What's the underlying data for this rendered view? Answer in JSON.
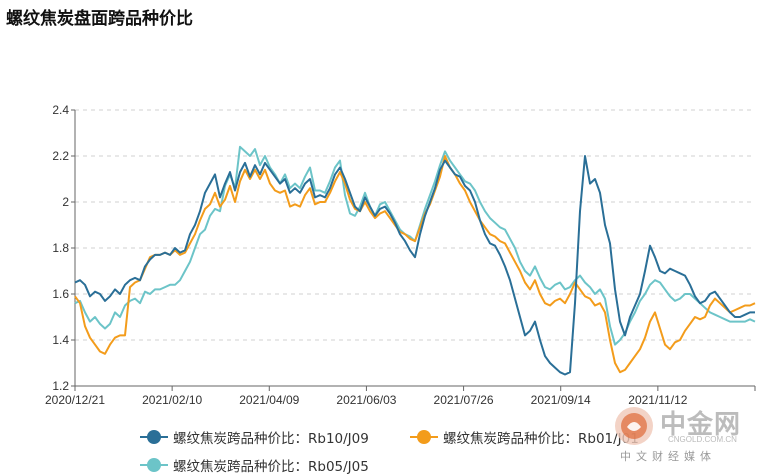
{
  "chart_data": {
    "type": "line",
    "title": "螺纹焦炭盘面跨品种价比",
    "x_tick_labels": [
      "2020/12/21",
      "2021/02/10",
      "2021/04/09",
      "2021/06/03",
      "2021/07/26",
      "2021/09/14",
      "2021/11/12"
    ],
    "y_ticks": [
      "1.2",
      "1.4",
      "1.6",
      "1.8",
      "2",
      "2.2",
      "2.4"
    ],
    "ylim": [
      1.2,
      2.4
    ],
    "grid": "horizontal dashed",
    "legend_position": "bottom",
    "series": [
      {
        "name": "螺纹焦炭跨品种价比：Rb10/J09",
        "color": "#2a6f97",
        "values": [
          1.65,
          1.66,
          1.64,
          1.59,
          1.61,
          1.6,
          1.57,
          1.59,
          1.62,
          1.6,
          1.64,
          1.66,
          1.67,
          1.66,
          1.72,
          1.75,
          1.77,
          1.77,
          1.78,
          1.77,
          1.8,
          1.78,
          1.79,
          1.86,
          1.9,
          1.96,
          2.04,
          2.08,
          2.12,
          2.02,
          2.08,
          2.13,
          2.05,
          2.13,
          2.17,
          2.11,
          2.16,
          2.12,
          2.17,
          2.14,
          2.11,
          2.08,
          2.1,
          2.04,
          2.06,
          2.04,
          2.08,
          2.1,
          2.02,
          2.03,
          2.02,
          2.06,
          2.12,
          2.15,
          2.1,
          2.04,
          1.98,
          1.96,
          2.02,
          1.98,
          1.94,
          1.97,
          1.98,
          1.95,
          1.91,
          1.86,
          1.83,
          1.79,
          1.76,
          1.86,
          1.94,
          2.0,
          2.06,
          2.14,
          2.18,
          2.15,
          2.12,
          2.11,
          2.07,
          2.05,
          2.0,
          1.92,
          1.86,
          1.82,
          1.81,
          1.77,
          1.72,
          1.66,
          1.58,
          1.5,
          1.42,
          1.44,
          1.48,
          1.4,
          1.33,
          1.3,
          1.28,
          1.26,
          1.25,
          1.26,
          1.56,
          1.96,
          2.2,
          2.08,
          2.1,
          2.04,
          1.9,
          1.82,
          1.62,
          1.48,
          1.42,
          1.5,
          1.55,
          1.6,
          1.7,
          1.81,
          1.76,
          1.7,
          1.69,
          1.71,
          1.7,
          1.69,
          1.68,
          1.64,
          1.59,
          1.56,
          1.57,
          1.6,
          1.61,
          1.58,
          1.55,
          1.52,
          1.5,
          1.5,
          1.51,
          1.52,
          1.52
        ]
      },
      {
        "name": "螺纹焦炭跨品种价比：Rb01/J01",
        "color": "#f39c1b",
        "values": [
          1.59,
          1.56,
          1.46,
          1.41,
          1.38,
          1.35,
          1.34,
          1.38,
          1.41,
          1.42,
          1.42,
          1.63,
          1.65,
          1.66,
          1.71,
          1.76,
          1.77,
          1.77,
          1.78,
          1.77,
          1.79,
          1.77,
          1.78,
          1.82,
          1.86,
          1.92,
          1.97,
          1.99,
          2.04,
          1.98,
          2.01,
          2.07,
          2.0,
          2.09,
          2.14,
          2.1,
          2.14,
          2.1,
          2.14,
          2.08,
          2.05,
          2.04,
          2.05,
          1.98,
          1.99,
          1.98,
          2.03,
          2.06,
          1.99,
          2.0,
          2.0,
          2.04,
          2.09,
          2.13,
          2.08,
          2.01,
          1.97,
          1.96,
          2.0,
          1.96,
          1.93,
          1.95,
          1.96,
          1.93,
          1.9,
          1.87,
          1.86,
          1.84,
          1.83,
          1.89,
          1.95,
          1.99,
          2.05,
          2.11,
          2.2,
          2.15,
          2.12,
          2.08,
          2.05,
          2.0,
          1.96,
          1.92,
          1.89,
          1.86,
          1.85,
          1.83,
          1.82,
          1.78,
          1.74,
          1.7,
          1.65,
          1.62,
          1.66,
          1.6,
          1.56,
          1.55,
          1.57,
          1.58,
          1.56,
          1.6,
          1.65,
          1.62,
          1.59,
          1.58,
          1.55,
          1.56,
          1.52,
          1.4,
          1.3,
          1.26,
          1.27,
          1.3,
          1.33,
          1.36,
          1.41,
          1.48,
          1.52,
          1.45,
          1.38,
          1.36,
          1.39,
          1.4,
          1.44,
          1.47,
          1.5,
          1.49,
          1.5,
          1.55,
          1.58,
          1.56,
          1.54,
          1.52,
          1.53,
          1.54,
          1.55,
          1.55,
          1.56
        ]
      },
      {
        "name": "螺纹焦炭跨品种价比：Rb05/J05",
        "color": "#6cc4c8",
        "values": [
          1.56,
          1.57,
          1.52,
          1.48,
          1.5,
          1.47,
          1.45,
          1.47,
          1.52,
          1.5,
          1.55,
          1.57,
          1.58,
          1.56,
          1.61,
          1.6,
          1.62,
          1.62,
          1.63,
          1.64,
          1.64,
          1.66,
          1.7,
          1.74,
          1.8,
          1.86,
          1.88,
          1.94,
          1.97,
          1.96,
          2.07,
          2.12,
          2.06,
          2.24,
          2.22,
          2.2,
          2.23,
          2.16,
          2.2,
          2.15,
          2.12,
          2.08,
          2.12,
          2.06,
          2.08,
          2.06,
          2.11,
          2.15,
          2.05,
          2.05,
          2.04,
          2.09,
          2.15,
          2.18,
          2.03,
          1.95,
          1.94,
          1.98,
          2.04,
          1.98,
          1.94,
          1.99,
          2.0,
          1.96,
          1.92,
          1.88,
          1.86,
          1.85,
          1.83,
          1.9,
          1.97,
          2.03,
          2.09,
          2.16,
          2.22,
          2.18,
          2.15,
          2.12,
          2.09,
          2.08,
          2.05,
          2.0,
          1.96,
          1.93,
          1.91,
          1.89,
          1.88,
          1.84,
          1.8,
          1.74,
          1.7,
          1.68,
          1.72,
          1.67,
          1.63,
          1.62,
          1.64,
          1.65,
          1.62,
          1.63,
          1.66,
          1.68,
          1.65,
          1.63,
          1.6,
          1.62,
          1.58,
          1.46,
          1.38,
          1.4,
          1.43,
          1.48,
          1.52,
          1.57,
          1.6,
          1.64,
          1.66,
          1.65,
          1.62,
          1.59,
          1.57,
          1.58,
          1.6,
          1.6,
          1.58,
          1.56,
          1.54,
          1.52,
          1.51,
          1.5,
          1.49,
          1.48,
          1.48,
          1.48,
          1.48,
          1.49,
          1.48
        ]
      }
    ]
  },
  "watermark": {
    "name": "中金网",
    "url": "CNGOLD.COM.CN",
    "tagline": "中文财经媒体"
  }
}
